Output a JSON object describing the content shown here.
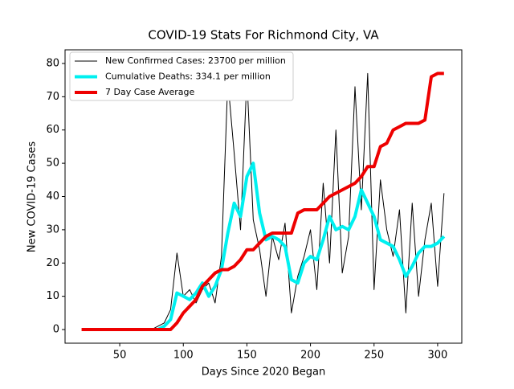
{
  "chart_data": {
    "type": "line",
    "title": "COVID-19 Stats For Richmond City, VA",
    "xlabel": "Days Since 2020 Began",
    "ylabel": "New COVID-19 Cases",
    "x": [
      20,
      25,
      30,
      35,
      40,
      45,
      50,
      55,
      60,
      65,
      70,
      75,
      80,
      85,
      90,
      95,
      100,
      105,
      110,
      115,
      120,
      125,
      130,
      135,
      140,
      145,
      150,
      155,
      160,
      165,
      170,
      175,
      180,
      185,
      190,
      195,
      200,
      205,
      210,
      215,
      220,
      225,
      230,
      235,
      240,
      245,
      250,
      255,
      260,
      265,
      270,
      275,
      280,
      285,
      290,
      295,
      300,
      305
    ],
    "series": [
      {
        "name": "New Confirmed Cases: 23700 per million",
        "color": "#000000",
        "width": 1,
        "values": [
          null,
          null,
          null,
          null,
          null,
          null,
          null,
          null,
          null,
          null,
          null,
          0,
          1,
          2,
          6,
          23,
          10,
          12,
          8,
          12,
          14,
          8,
          22,
          75,
          53,
          30,
          76,
          33,
          24,
          10,
          28,
          21,
          32,
          5,
          16,
          22,
          30,
          12,
          44,
          20,
          60,
          17,
          28,
          73,
          36,
          77,
          12,
          45,
          30,
          22,
          36,
          5,
          38,
          10,
          27,
          38,
          13,
          41
        ]
      },
      {
        "name": "Cumulative Deaths: 334.1 per million",
        "color": "#00f0f0",
        "width": 4,
        "values": [
          null,
          null,
          null,
          null,
          null,
          null,
          null,
          null,
          null,
          null,
          null,
          null,
          0,
          1,
          3,
          11,
          10,
          9,
          11,
          14,
          10,
          13,
          18,
          29,
          38,
          34,
          46,
          50,
          35,
          27,
          28,
          27,
          25,
          15,
          14,
          20,
          22,
          21,
          27,
          34,
          30,
          31,
          30,
          34,
          42,
          38,
          34,
          27,
          26,
          25,
          21,
          16,
          19,
          23,
          25,
          25,
          26,
          28
        ]
      },
      {
        "name": "7 Day Case Average",
        "color": "#ee0000",
        "width": 4,
        "values": [
          0,
          0,
          0,
          0,
          0,
          0,
          0,
          0,
          0,
          0,
          0,
          0,
          0,
          0,
          0,
          2,
          5,
          7,
          9,
          13,
          15,
          17,
          18,
          18,
          19,
          21,
          24,
          24,
          26,
          28,
          29,
          29,
          29,
          29,
          35,
          36,
          36,
          36,
          38,
          40,
          41,
          42,
          43,
          44,
          46,
          49,
          49,
          55,
          56,
          60,
          61,
          62,
          62,
          62,
          63,
          76,
          77,
          77
        ]
      }
    ],
    "xlim": [
      7,
      319
    ],
    "ylim": [
      -4.1,
      84.1
    ],
    "xticks": [
      50,
      100,
      150,
      200,
      250,
      300
    ],
    "yticks": [
      0,
      10,
      20,
      30,
      40,
      50,
      60,
      70,
      80
    ],
    "legend": "upper left"
  }
}
